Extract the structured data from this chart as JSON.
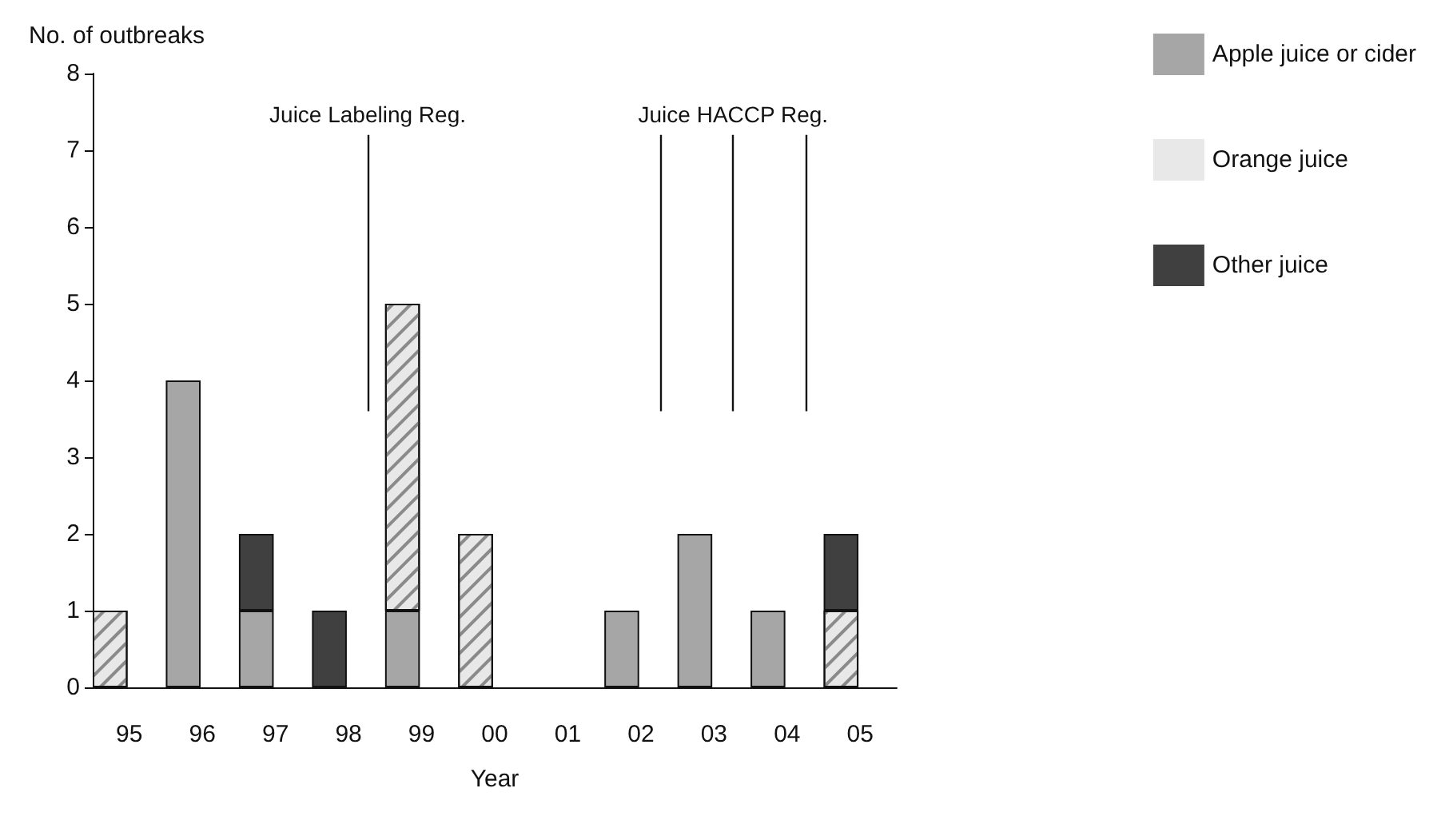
{
  "chart_data": {
    "type": "bar",
    "stacked": true,
    "xlabel": "Year",
    "ylabel": "No. of outbreaks",
    "categories": [
      "95",
      "96",
      "97",
      "98",
      "99",
      "00",
      "01",
      "02",
      "03",
      "04",
      "05"
    ],
    "series": [
      {
        "name": "Apple juice or cider",
        "color": "#a6a6a6",
        "values": [
          null,
          4,
          1,
          null,
          1,
          null,
          null,
          1,
          2,
          1,
          null
        ]
      },
      {
        "name": "Orange juice",
        "color": "#e8e8e8",
        "values": [
          1,
          null,
          null,
          null,
          4,
          2,
          null,
          null,
          null,
          null,
          1
        ]
      },
      {
        "name": "Other juice",
        "color": "#404040",
        "values": [
          null,
          null,
          1,
          1,
          null,
          null,
          null,
          null,
          null,
          null,
          1
        ]
      }
    ],
    "ylim": [
      0,
      8
    ],
    "yticks": [
      0,
      1,
      2,
      3,
      4,
      5,
      6,
      7,
      8
    ],
    "grid": false,
    "legend": "top right",
    "ref_lines": [
      {
        "axis": "x",
        "value": "98",
        "label": "Juice Labeling Reg."
      },
      {
        "axis": "x",
        "value": "02"
      },
      {
        "axis": "x",
        "value": "03",
        "label": "Juice HACCP Reg."
      },
      {
        "axis": "x",
        "value": "04"
      }
    ]
  }
}
